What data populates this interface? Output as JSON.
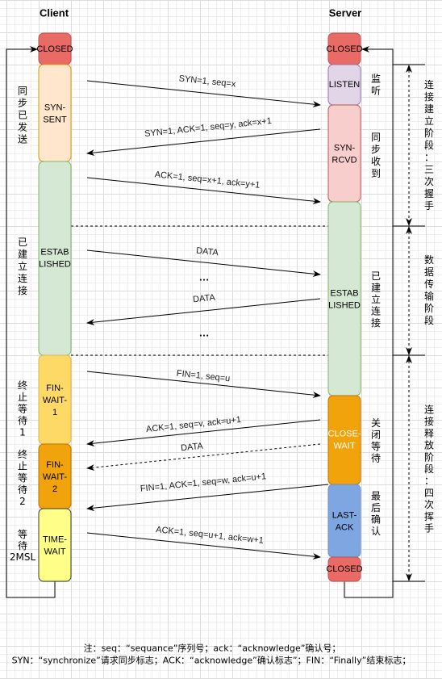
{
  "header": {
    "client": "Client",
    "server": "Server"
  },
  "client": {
    "states": [
      {
        "name": "CLOSED",
        "fill": "#EA6B66"
      },
      {
        "name": "SYN-SENT",
        "fill": "#FFE6CC"
      },
      {
        "name": "ESTABLISHED",
        "fill": "#D5E8D4"
      },
      {
        "name": "FIN-WAIT-1",
        "fill": "#FFD966"
      },
      {
        "name": "FIN-WAIT-2",
        "fill": "#F0A30A"
      },
      {
        "name": "TIME-WAIT",
        "fill": "#FFFF88"
      }
    ],
    "labels": [
      "同步已发送",
      "已建立连接",
      "终止等待1",
      "终止等待2",
      "等待2MSL"
    ]
  },
  "server": {
    "states": [
      {
        "name": "CLOSED",
        "fill": "#EA6B66"
      },
      {
        "name": "LISTEN",
        "fill": "#E1D5E7"
      },
      {
        "name": "SYN-RCVD",
        "fill": "#F8CECC"
      },
      {
        "name": "ESTABLISHED",
        "fill": "#D5E8D4"
      },
      {
        "name": "CLOSE-WAIT",
        "fill": "#F0A30A"
      },
      {
        "name": "LAST-ACK",
        "fill": "#7EA6E0"
      },
      {
        "name": "CLOSED",
        "fill": "#EA6B66"
      }
    ],
    "labels": [
      "监听",
      "同步收到",
      "已建立连接",
      "关闭等待",
      "最后确认"
    ]
  },
  "phases": [
    "连接建立阶段：三次握手",
    "数据传输阶段",
    "连接释放阶段：四次挥手"
  ],
  "messages": [
    "SYN=1, seq=x",
    "SYN=1, ACK=1, seq=y, ack=x+1",
    "ACK=1, seq=x+1, ack=y+1",
    "DATA",
    "DATA",
    "FIN=1, seq=u",
    "ACK=1, seq=v, ack=u+1",
    "DATA",
    "FIN=1, ACK=1, seq=w, ack=u+1",
    "ACK=1, seq=u+1, ack=w+1"
  ],
  "ellipses": [
    "…",
    "…"
  ],
  "notes": [
    "注：seq：“sequance”序列号；ack：“acknowledge”确认号；",
    "SYN：“synchronize”请求同步标志；ACK：“acknowledge”确认标志”；FIN：“Finally”结束标志；"
  ]
}
